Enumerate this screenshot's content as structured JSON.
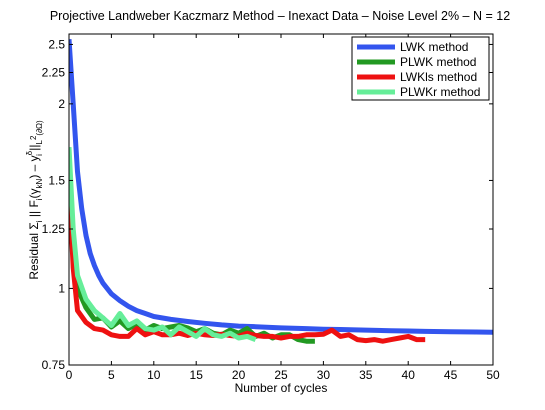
{
  "chart_data": {
    "type": "line",
    "title": "Projective Landweber Kaczmarz Method  –  Inexact Data  –  Noise Level 2%  –  N = 12",
    "xlabel": "Number of cycles",
    "ylabel": {
      "prefix": "Residual  Σ",
      "sub_i1": "i",
      "middle": " || F",
      "sub_i2": "i",
      "arg": "(γ",
      "sub_kN": "kN",
      "close": ") – y",
      "sup_delta": "δ",
      "sub_i3": "i",
      "norm": " ||",
      "sub_space": "L",
      "sup_2": "2",
      "sub_domain": "(∂Ω)"
    },
    "xlim": [
      0,
      50
    ],
    "ylim": [
      0.75,
      2.6
    ],
    "yscale": "log",
    "xticks": [
      0,
      5,
      10,
      15,
      20,
      25,
      30,
      35,
      40,
      45,
      50
    ],
    "xtick_labels": [
      "0",
      "5",
      "10",
      "15",
      "20",
      "25",
      "30",
      "35",
      "40",
      "45",
      "50"
    ],
    "yticks": [
      0.75,
      1,
      1.25,
      1.5,
      2,
      2.25,
      2.5
    ],
    "ytick_labels": [
      "0.75",
      "1",
      "1.25",
      "1.5",
      "2",
      "2.25",
      "2.5"
    ],
    "grid": false,
    "legend_position": "top-right",
    "series": [
      {
        "name": "LWK method",
        "color": "#3355ee",
        "x": [
          0,
          0.5,
          1,
          1.5,
          2,
          2.5,
          3,
          3.5,
          4,
          5,
          6,
          7,
          8,
          9,
          10,
          12,
          14,
          16,
          18,
          20,
          22,
          25,
          28,
          30,
          32,
          35,
          38,
          40,
          42,
          45,
          48,
          50
        ],
        "y": [
          2.55,
          2.0,
          1.55,
          1.35,
          1.22,
          1.14,
          1.09,
          1.05,
          1.02,
          0.98,
          0.955,
          0.935,
          0.92,
          0.91,
          0.9,
          0.89,
          0.883,
          0.877,
          0.872,
          0.868,
          0.866,
          0.862,
          0.86,
          0.858,
          0.857,
          0.855,
          0.853,
          0.852,
          0.851,
          0.85,
          0.849,
          0.848
        ]
      },
      {
        "name": "PLWK method",
        "color": "#229922",
        "x": [
          0,
          0.5,
          1,
          2,
          3,
          4,
          5,
          6,
          7,
          8,
          9,
          10,
          11,
          12,
          13,
          14,
          15,
          16,
          17,
          18,
          19,
          20,
          21,
          22,
          23,
          24,
          25,
          26,
          27,
          28,
          29
        ],
        "y": [
          1.4,
          1.15,
          1.0,
          0.93,
          0.89,
          0.895,
          0.865,
          0.885,
          0.86,
          0.875,
          0.855,
          0.87,
          0.86,
          0.865,
          0.87,
          0.862,
          0.85,
          0.86,
          0.845,
          0.84,
          0.855,
          0.845,
          0.86,
          0.835,
          0.845,
          0.83,
          0.84,
          0.84,
          0.825,
          0.82,
          0.82
        ]
      },
      {
        "name": "LWKls method",
        "color": "#ee1111",
        "x": [
          0,
          0.5,
          1,
          2,
          3,
          4,
          5,
          6,
          7,
          8,
          9,
          10,
          11,
          12,
          13,
          14,
          15,
          16,
          17,
          18,
          19,
          20,
          21,
          22,
          23,
          24,
          25,
          26,
          27,
          28,
          29,
          30,
          31,
          32,
          33,
          34,
          35,
          36,
          37,
          38,
          39,
          40,
          41,
          42
        ],
        "y": [
          1.5,
          1.08,
          0.92,
          0.88,
          0.86,
          0.855,
          0.84,
          0.835,
          0.835,
          0.86,
          0.84,
          0.85,
          0.84,
          0.84,
          0.845,
          0.838,
          0.845,
          0.84,
          0.838,
          0.842,
          0.838,
          0.835,
          0.845,
          0.838,
          0.835,
          0.835,
          0.83,
          0.835,
          0.835,
          0.84,
          0.84,
          0.842,
          0.855,
          0.835,
          0.84,
          0.825,
          0.822,
          0.825,
          0.82,
          0.825,
          0.83,
          0.835,
          0.825,
          0.825
        ]
      },
      {
        "name": "PLWKr method",
        "color": "#66ee99",
        "x": [
          0,
          0.5,
          1,
          2,
          3,
          4,
          5,
          6,
          7,
          8,
          9,
          10,
          11,
          12,
          13,
          14,
          15,
          16,
          17,
          18,
          19,
          20,
          21,
          22
        ],
        "y": [
          1.7,
          1.25,
          1.05,
          0.96,
          0.92,
          0.895,
          0.87,
          0.91,
          0.87,
          0.885,
          0.86,
          0.855,
          0.865,
          0.84,
          0.865,
          0.85,
          0.835,
          0.86,
          0.84,
          0.835,
          0.845,
          0.83,
          0.835,
          0.825
        ]
      }
    ]
  }
}
